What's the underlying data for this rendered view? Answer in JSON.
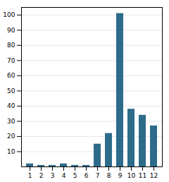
{
  "chart_data": {
    "type": "bar",
    "categories": [
      "1",
      "2",
      "3",
      "4",
      "5",
      "6",
      "7",
      "8",
      "9",
      "10",
      "11",
      "12"
    ],
    "values": [
      2,
      1,
      1,
      2,
      1,
      1,
      15,
      22,
      101,
      38,
      34,
      27
    ],
    "color": "#2e6b8a",
    "ylim": [
      0,
      105
    ],
    "yticks": [
      10,
      20,
      30,
      40,
      50,
      60,
      70,
      80,
      90,
      100
    ],
    "grid": true
  }
}
